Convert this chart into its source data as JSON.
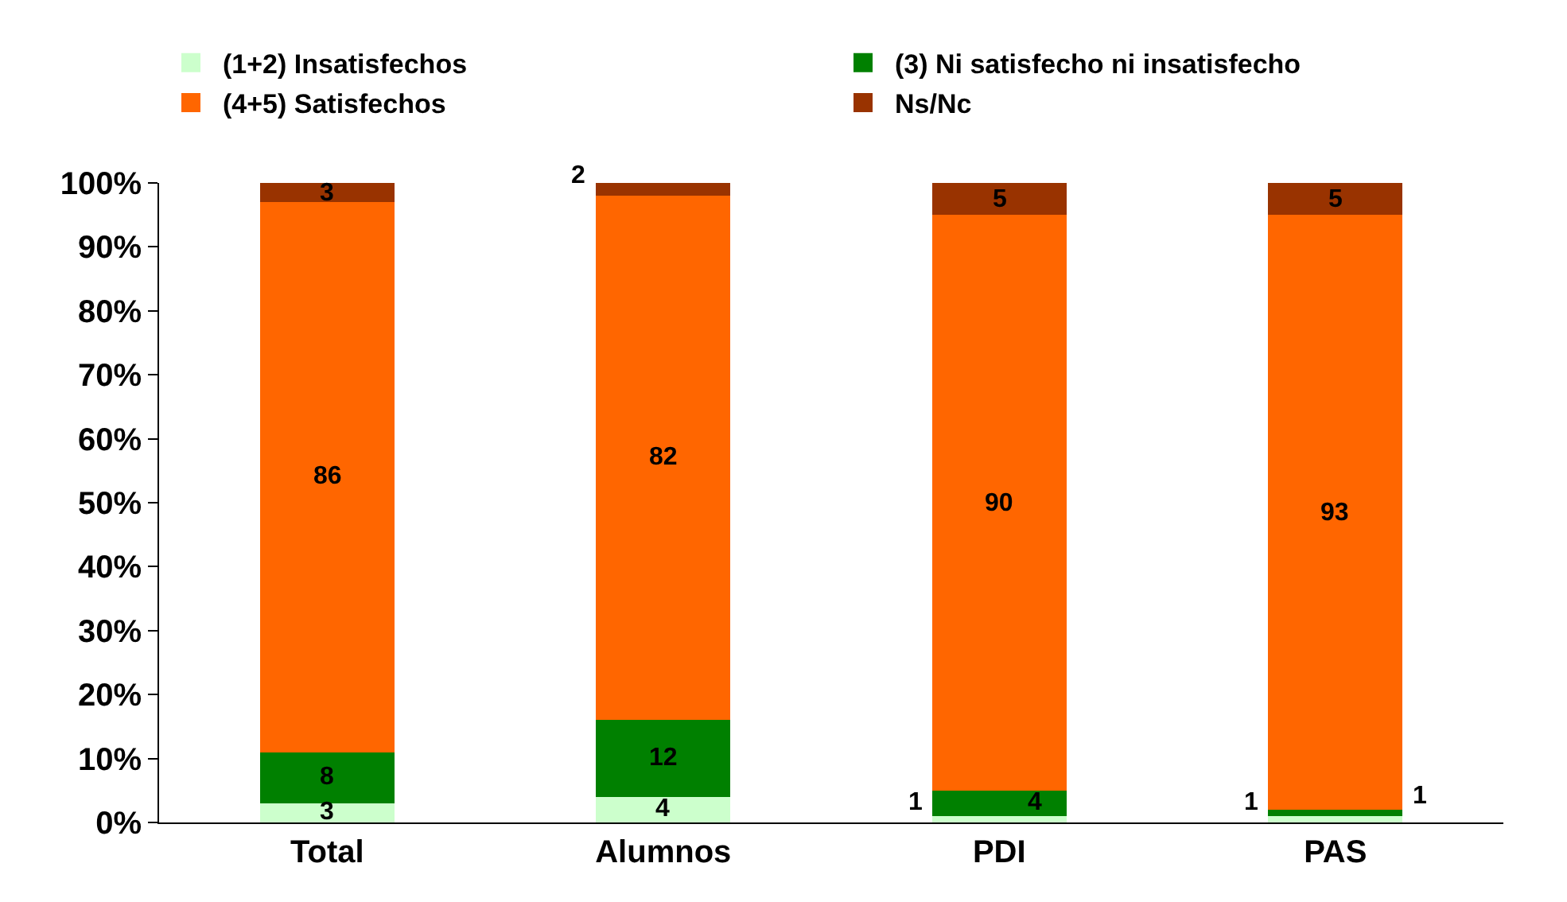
{
  "chart_data": {
    "type": "bar",
    "stacked": true,
    "data_labels": true,
    "legend": "top",
    "grid": false,
    "categories": [
      "Total",
      "Alumnos",
      "PDI",
      "PAS"
    ],
    "series": [
      {
        "name": "(1+2) Insatisfechos",
        "color": "#ccffcc",
        "values": [
          3,
          4,
          1,
          1
        ]
      },
      {
        "name": "(3) Ni satisfecho ni insatisfecho",
        "color": "#008000",
        "values": [
          8,
          12,
          4,
          1
        ]
      },
      {
        "name": "(4+5) Satisfechos",
        "color": "#ff6600",
        "values": [
          86,
          82,
          90,
          93
        ]
      },
      {
        "name": "Ns/Nc",
        "color": "#993300",
        "values": [
          3,
          2,
          5,
          5
        ]
      }
    ],
    "ylim": [
      0,
      100
    ],
    "yticks": [
      {
        "value": 0,
        "label": "0%"
      },
      {
        "value": 10,
        "label": "10%"
      },
      {
        "value": 20,
        "label": "20%"
      },
      {
        "value": 30,
        "label": "30%"
      },
      {
        "value": 40,
        "label": "40%"
      },
      {
        "value": 50,
        "label": "50%"
      },
      {
        "value": 60,
        "label": "60%"
      },
      {
        "value": 70,
        "label": "70%"
      },
      {
        "value": 80,
        "label": "80%"
      },
      {
        "value": 90,
        "label": "90%"
      },
      {
        "value": 100,
        "label": "100%"
      }
    ]
  }
}
